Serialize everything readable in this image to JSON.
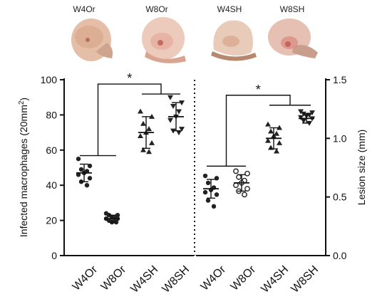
{
  "photos": [
    {
      "label": "W4Or"
    },
    {
      "label": "W8Or"
    },
    {
      "label": "W4SH"
    },
    {
      "label": "W8SH"
    }
  ],
  "chart_data": [
    {
      "type": "scatter",
      "ylabel_main": "Infected macrophages (20mm",
      "ylabel_sup": "2",
      "ylabel_end": ")",
      "ylim": [
        0,
        100
      ],
      "yticks": [
        "0",
        "20",
        "40",
        "60",
        "80",
        "100"
      ],
      "categories": [
        "W4Or",
        "W8Or",
        "W4SH",
        "W8SH"
      ],
      "significance": "*",
      "series": [
        {
          "category": "W4Or",
          "marker": "circle-filled",
          "mean": 47,
          "sd": 5,
          "values": [
            55,
            51,
            49,
            48,
            47,
            46,
            44,
            42,
            40
          ]
        },
        {
          "category": "W8Or",
          "marker": "circle-filled",
          "mean": 21,
          "sd": 2,
          "values": [
            24,
            23,
            23,
            22,
            22,
            21,
            21,
            20,
            20,
            19,
            19
          ]
        },
        {
          "category": "W4SH",
          "marker": "triangle-up",
          "mean": 70,
          "sd": 9,
          "values": [
            82,
            79,
            75,
            72,
            70,
            68,
            64,
            60,
            59
          ]
        },
        {
          "category": "W8SH",
          "marker": "triangle-down",
          "mean": 79,
          "sd": 8,
          "values": [
            90,
            87,
            85,
            82,
            79,
            77,
            72,
            71,
            70
          ]
        }
      ]
    },
    {
      "type": "scatter",
      "ylabel": "Lesion size (mm)",
      "ylim": [
        0,
        1.5
      ],
      "yticks": [
        "0.0",
        "0.5",
        "1.0",
        "1.5"
      ],
      "categories": [
        "W4Or",
        "W8Or",
        "W4SH",
        "W8SH"
      ],
      "significance": "*",
      "series": [
        {
          "category": "W4Or",
          "marker": "circle-filled",
          "mean": 0.57,
          "sd": 0.08,
          "values": [
            0.68,
            0.66,
            0.62,
            0.58,
            0.56,
            0.54,
            0.52,
            0.47,
            0.42
          ]
        },
        {
          "category": "W8Or",
          "marker": "circle-open",
          "mean": 0.62,
          "sd": 0.07,
          "values": [
            0.72,
            0.7,
            0.67,
            0.64,
            0.62,
            0.6,
            0.57,
            0.55,
            0.52
          ]
        },
        {
          "category": "W4SH",
          "marker": "triangle-up",
          "mean": 1.0,
          "sd": 0.09,
          "values": [
            1.12,
            1.09,
            1.06,
            1.04,
            1.02,
            0.98,
            0.96,
            0.92,
            0.89
          ]
        },
        {
          "category": "W8SH",
          "marker": "triangle-down",
          "mean": 1.17,
          "sd": 0.04,
          "values": [
            1.23,
            1.22,
            1.21,
            1.2,
            1.19,
            1.18,
            1.17,
            1.15,
            1.13
          ]
        }
      ]
    }
  ]
}
